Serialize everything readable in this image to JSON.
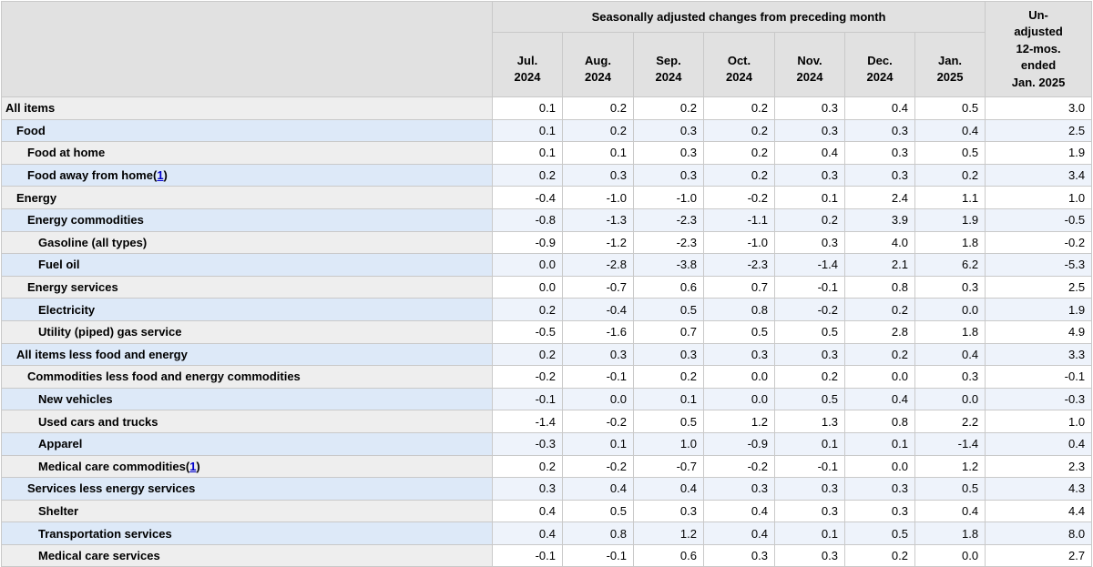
{
  "table": {
    "group_header": "Seasonally adjusted changes from preceding month",
    "columns": [
      {
        "month": "Jul.",
        "year": "2024"
      },
      {
        "month": "Aug.",
        "year": "2024"
      },
      {
        "month": "Sep.",
        "year": "2024"
      },
      {
        "month": "Oct.",
        "year": "2024"
      },
      {
        "month": "Nov.",
        "year": "2024"
      },
      {
        "month": "Dec.",
        "year": "2024"
      },
      {
        "month": "Jan.",
        "year": "2025"
      }
    ],
    "unadjusted_header": {
      "line1": "Un-",
      "line2": "adjusted",
      "line3": "12-mos.",
      "line4": "ended",
      "line5": "Jan. 2025"
    },
    "rows": [
      {
        "label": "All items",
        "indent": 0,
        "footnote": "",
        "values": [
          "0.1",
          "0.2",
          "0.2",
          "0.2",
          "0.3",
          "0.4",
          "0.5"
        ],
        "unadjusted": "3.0"
      },
      {
        "label": "Food",
        "indent": 1,
        "footnote": "",
        "values": [
          "0.1",
          "0.2",
          "0.3",
          "0.2",
          "0.3",
          "0.3",
          "0.4"
        ],
        "unadjusted": "2.5"
      },
      {
        "label": "Food at home",
        "indent": 2,
        "footnote": "",
        "values": [
          "0.1",
          "0.1",
          "0.3",
          "0.2",
          "0.4",
          "0.3",
          "0.5"
        ],
        "unadjusted": "1.9"
      },
      {
        "label": "Food away from home",
        "indent": 2,
        "footnote": "1",
        "values": [
          "0.2",
          "0.3",
          "0.3",
          "0.2",
          "0.3",
          "0.3",
          "0.2"
        ],
        "unadjusted": "3.4"
      },
      {
        "label": "Energy",
        "indent": 1,
        "footnote": "",
        "values": [
          "-0.4",
          "-1.0",
          "-1.0",
          "-0.2",
          "0.1",
          "2.4",
          "1.1"
        ],
        "unadjusted": "1.0"
      },
      {
        "label": "Energy commodities",
        "indent": 2,
        "footnote": "",
        "values": [
          "-0.8",
          "-1.3",
          "-2.3",
          "-1.1",
          "0.2",
          "3.9",
          "1.9"
        ],
        "unadjusted": "-0.5"
      },
      {
        "label": "Gasoline (all types)",
        "indent": 3,
        "footnote": "",
        "values": [
          "-0.9",
          "-1.2",
          "-2.3",
          "-1.0",
          "0.3",
          "4.0",
          "1.8"
        ],
        "unadjusted": "-0.2"
      },
      {
        "label": "Fuel oil",
        "indent": 3,
        "footnote": "",
        "values": [
          "0.0",
          "-2.8",
          "-3.8",
          "-2.3",
          "-1.4",
          "2.1",
          "6.2"
        ],
        "unadjusted": "-5.3"
      },
      {
        "label": "Energy services",
        "indent": 2,
        "footnote": "",
        "values": [
          "0.0",
          "-0.7",
          "0.6",
          "0.7",
          "-0.1",
          "0.8",
          "0.3"
        ],
        "unadjusted": "2.5"
      },
      {
        "label": "Electricity",
        "indent": 3,
        "footnote": "",
        "values": [
          "0.2",
          "-0.4",
          "0.5",
          "0.8",
          "-0.2",
          "0.2",
          "0.0"
        ],
        "unadjusted": "1.9"
      },
      {
        "label": "Utility (piped) gas service",
        "indent": 3,
        "footnote": "",
        "values": [
          "-0.5",
          "-1.6",
          "0.7",
          "0.5",
          "0.5",
          "2.8",
          "1.8"
        ],
        "unadjusted": "4.9"
      },
      {
        "label": "All items less food and energy",
        "indent": 1,
        "footnote": "",
        "values": [
          "0.2",
          "0.3",
          "0.3",
          "0.3",
          "0.3",
          "0.2",
          "0.4"
        ],
        "unadjusted": "3.3"
      },
      {
        "label": "Commodities less food and energy commodities",
        "indent": 2,
        "footnote": "",
        "values": [
          "-0.2",
          "-0.1",
          "0.2",
          "0.0",
          "0.2",
          "0.0",
          "0.3"
        ],
        "unadjusted": "-0.1"
      },
      {
        "label": "New vehicles",
        "indent": 3,
        "footnote": "",
        "values": [
          "-0.1",
          "0.0",
          "0.1",
          "0.0",
          "0.5",
          "0.4",
          "0.0"
        ],
        "unadjusted": "-0.3"
      },
      {
        "label": "Used cars and trucks",
        "indent": 3,
        "footnote": "",
        "values": [
          "-1.4",
          "-0.2",
          "0.5",
          "1.2",
          "1.3",
          "0.8",
          "2.2"
        ],
        "unadjusted": "1.0"
      },
      {
        "label": "Apparel",
        "indent": 3,
        "footnote": "",
        "values": [
          "-0.3",
          "0.1",
          "1.0",
          "-0.9",
          "0.1",
          "0.1",
          "-1.4"
        ],
        "unadjusted": "0.4"
      },
      {
        "label": "Medical care commodities",
        "indent": 3,
        "footnote": "1",
        "values": [
          "0.2",
          "-0.2",
          "-0.7",
          "-0.2",
          "-0.1",
          "0.0",
          "1.2"
        ],
        "unadjusted": "2.3"
      },
      {
        "label": "Services less energy services",
        "indent": 2,
        "footnote": "",
        "values": [
          "0.3",
          "0.4",
          "0.4",
          "0.3",
          "0.3",
          "0.3",
          "0.5"
        ],
        "unadjusted": "4.3"
      },
      {
        "label": "Shelter",
        "indent": 3,
        "footnote": "",
        "values": [
          "0.4",
          "0.5",
          "0.3",
          "0.4",
          "0.3",
          "0.3",
          "0.4"
        ],
        "unadjusted": "4.4"
      },
      {
        "label": "Transportation services",
        "indent": 3,
        "footnote": "",
        "values": [
          "0.4",
          "0.8",
          "1.2",
          "0.4",
          "0.1",
          "0.5",
          "1.8"
        ],
        "unadjusted": "8.0"
      },
      {
        "label": "Medical care services",
        "indent": 3,
        "footnote": "",
        "values": [
          "-0.1",
          "-0.1",
          "0.6",
          "0.3",
          "0.3",
          "0.2",
          "0.0"
        ],
        "unadjusted": "2.7"
      }
    ]
  }
}
